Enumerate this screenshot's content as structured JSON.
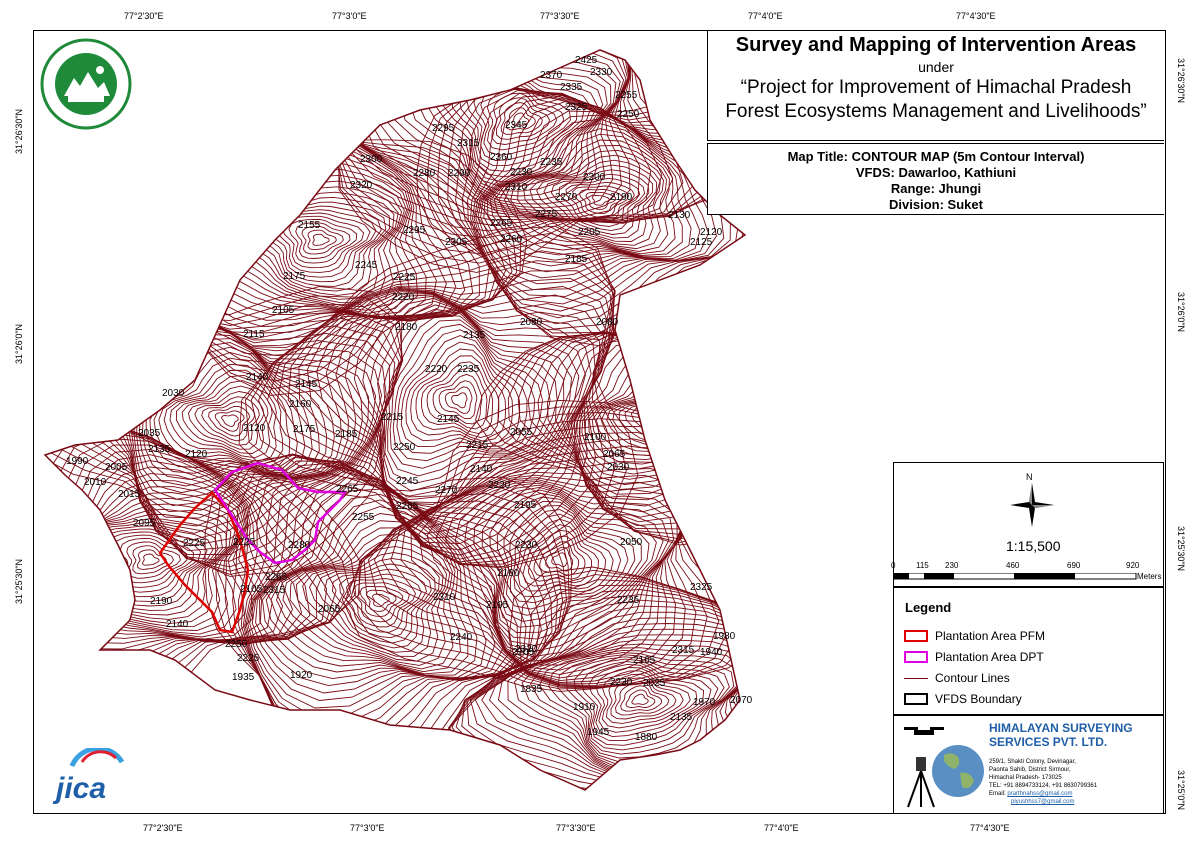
{
  "coordinates": {
    "top": [
      "77°2'30\"E",
      "77°3'0\"E",
      "77°3'30\"E",
      "77°4'0\"E",
      "77°4'30\"E"
    ],
    "bottom": [
      "77°2'30\"E",
      "77°3'0\"E",
      "77°3'30\"E",
      "77°4'0\"E",
      "77°4'30\"E"
    ],
    "left": [
      "31°26'30\"N",
      "31°26'0\"N",
      "31°25'30\"N"
    ],
    "right": [
      "31°26'30\"N",
      "31°26'0\"N",
      "31°25'30\"N",
      "31°25'0\"N"
    ]
  },
  "title": {
    "main": "Survey and Mapping of Intervention Areas",
    "under": "under",
    "project_line1": "“Project for Improvement of Himachal Pradesh",
    "project_line2": "Forest Ecosystems Management and Livelihoods”"
  },
  "info": {
    "map_title": "Map Title: CONTOUR MAP (5m Contour Interval)",
    "vfds": "VFDS: Dawarloo, Kathiuni",
    "range": "Range: Jhungi",
    "division": "Division: Suket"
  },
  "north_label": "N",
  "scale": {
    "ratio": "1:15,500",
    "ticks": [
      "0",
      "115",
      "230",
      "460",
      "690",
      "920"
    ],
    "unit": "Meters"
  },
  "legend": {
    "title": "Legend",
    "items": [
      {
        "label": "Plantation Area PFM",
        "color": "#e00000"
      },
      {
        "label": "Plantation Area DPT",
        "color": "#e000e0"
      },
      {
        "label": "Contour Lines",
        "color": "#7a0a14"
      },
      {
        "label": "VFDS Boundary",
        "color": "#000000"
      }
    ]
  },
  "company": {
    "name_line1": "HIMALAYAN SURVEYING",
    "name_line2": "SERVICES PVT. LTD.",
    "addr1": "259/1, Shakti Colony, Devinagar,",
    "addr2": "Paonta Sahib, District Sirmour,",
    "addr3": "Himachal Pradesh- 173025",
    "tel": "TEL: +91 8894733124, +91 8630799361",
    "email_label": "Email: ",
    "email1": "prarthnahss@gmail.com",
    "email2": "piyushhss7@gmail.com"
  },
  "logo_text": "jica",
  "contour_labels": [
    "2425",
    "2370",
    "2330",
    "2335",
    "2255",
    "2250",
    "2325",
    "2295",
    "2315",
    "2345",
    "2360",
    "2280",
    "2290",
    "2235",
    "2230",
    "2320",
    "2300",
    "2310",
    "2270",
    "2200",
    "2275",
    "2190",
    "2130",
    "2120",
    "2205",
    "2185",
    "2125",
    "2155",
    "2245",
    "2295",
    "2305",
    "2265",
    "2260",
    "2225",
    "2220",
    "2175",
    "2105",
    "2180",
    "2080",
    "2080",
    "2115",
    "2140",
    "2145",
    "2160",
    "2175",
    "2185",
    "2215",
    "2250",
    "2220",
    "2235",
    "2135",
    "2145",
    "2055",
    "2120",
    "2030",
    "2035",
    "2135",
    "1990",
    "2010",
    "2005",
    "2015",
    "2095",
    "2245",
    "2265",
    "2265",
    "2255",
    "2270",
    "2140",
    "2100",
    "2065",
    "2030",
    "2280",
    "2225",
    "2225",
    "2215",
    "2220",
    "2195",
    "2105",
    "2230",
    "2050",
    "2195",
    "2120",
    "2190",
    "2265",
    "2315",
    "2310",
    "2160",
    "2235",
    "2065",
    "2240",
    "2140",
    "2205",
    "2250",
    "2225",
    "2325",
    "2315",
    "1940",
    "1935",
    "1920",
    "2320",
    "2230",
    "2165",
    "2025",
    "1980",
    "1970",
    "1835",
    "1910",
    "2135",
    "2070",
    "1945",
    "1880",
    "2055",
    "1975"
  ]
}
